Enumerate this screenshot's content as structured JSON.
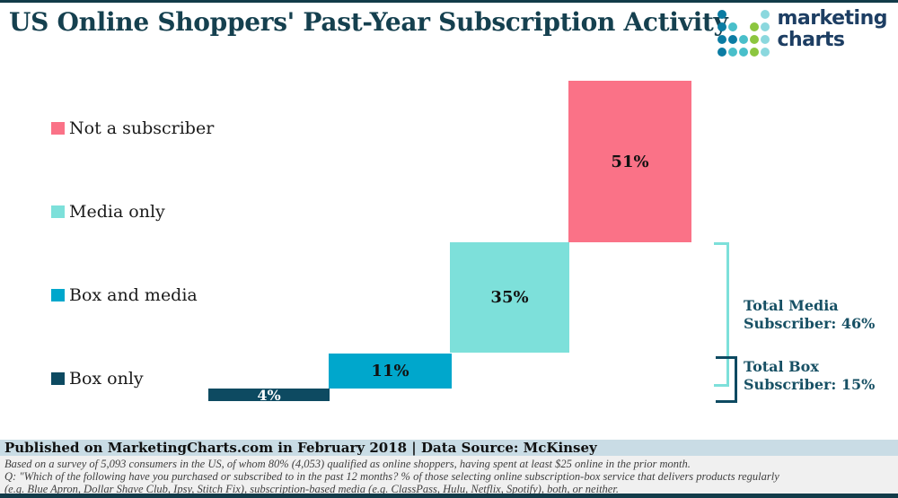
{
  "header": {
    "title": "US Online Shoppers' Past-Year Subscription Activity",
    "logo": {
      "line1": "marketing",
      "line2": "charts",
      "dot_colors": {
        "dark": "#0b7ca3",
        "teal": "#49bfca",
        "light": "#8bd8de",
        "green": "#8cc63f"
      },
      "dot_rows": [
        [
          "dark",
          null,
          null,
          null,
          "light"
        ],
        [
          "dark",
          "teal",
          null,
          "green",
          "light"
        ],
        [
          "dark",
          "dark",
          "teal",
          "green",
          "light"
        ],
        [
          "dark",
          "teal",
          "teal",
          "green",
          "light"
        ]
      ]
    }
  },
  "legend": [
    {
      "label": "Not a subscriber",
      "color": "#fa7287"
    },
    {
      "label": "Media only",
      "color": "#7de0da"
    },
    {
      "label": "Box and media",
      "color": "#00a7cc"
    },
    {
      "label": "Box only",
      "color": "#0d4a61"
    }
  ],
  "chart_data": {
    "type": "bar",
    "subtype": "waterfall-steps",
    "title": "US Online Shoppers' Past-Year Subscription Activity",
    "categories": [
      "Box only",
      "Box and media",
      "Media only",
      "Not a subscriber"
    ],
    "values": [
      4,
      11,
      35,
      51
    ],
    "unit": "%",
    "value_labels": [
      "4%",
      "11%",
      "35%",
      "51%"
    ],
    "colors": [
      "#0d4a61",
      "#00a7cc",
      "#7de0da",
      "#fa7287"
    ],
    "legend_position": "left",
    "axes": "none",
    "annotations": [
      {
        "label": "Total Media Subscriber",
        "value": 46,
        "unit": "%",
        "covers": [
          "Box and media",
          "Media only"
        ],
        "bracket_color": "#7de0da"
      },
      {
        "label": "Total Box Subscriber",
        "value": 15,
        "unit": "%",
        "covers": [
          "Box only",
          "Box and media"
        ],
        "bracket_color": "#0d4a61"
      }
    ]
  },
  "totals": {
    "media": {
      "line1": "Total Media",
      "line2": "Subscriber: 46%"
    },
    "box": {
      "line1": "Total Box",
      "line2": "Subscriber: 15%"
    }
  },
  "footer": {
    "published": "Published on MarketingCharts.com in February 2018 | Data Source: McKinsey",
    "notes": [
      "Based on a survey of 5,093 consumers in the US, of whom 80% (4,053) qualified as online shoppers, having spent at least $25 online in the prior month.",
      "Q: \"Which of the following have you purchased or subscribed to in the past 12 months? % of those selecting online subscription-box service that delivers products regularly",
      "(e.g. Blue Apron, Dollar Shave Club, Ipsy, Stitch Fix), subscription-based media (e.g. ClassPass, Hulu, Netflix, Spotify), both, or neither."
    ]
  },
  "colors": {
    "top_border": "#123b49",
    "bottom_border": "#123b49",
    "published_band_bg": "#c9dce5",
    "notes_bg": "#f0f0f0",
    "title_text": "#15404f",
    "totals_text": "#175064",
    "logo_text": "#1d3e63"
  }
}
